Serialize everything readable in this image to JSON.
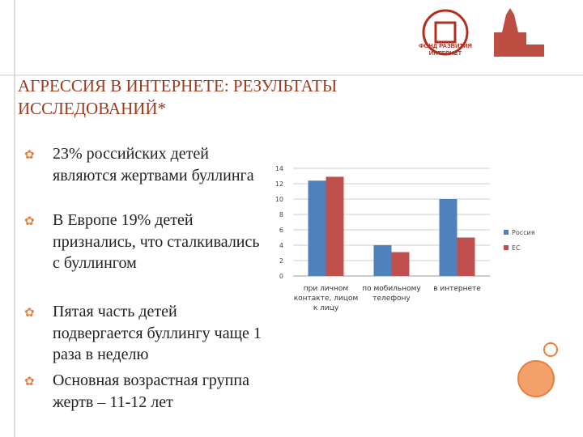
{
  "logo_text": "ФОНД РАЗВИТИЯ ИНТЕРНЕТ",
  "title": "АГРЕССИЯ В ИНТЕРНЕТЕ: РЕЗУЛЬТАТЫ ИССЛЕДОВАНИЙ*",
  "bullets": [
    "23% российских детей являются жертвами буллинга",
    "В Европе 19% детей признались, что сталкивались с буллингом",
    "Пятая часть детей подвергается буллингу чаще 1 раза в неделю",
    "Основная возрастная группа жертв – 11-12 лет"
  ],
  "chart_data": {
    "type": "bar",
    "categories": [
      "при личном контакте, лицом к лицу",
      "по мобильному телефону",
      "в интернете"
    ],
    "series": [
      {
        "name": "Россия",
        "color": "#4f81bd",
        "values": [
          12.4,
          4,
          10
        ]
      },
      {
        "name": "ЕС",
        "color": "#c0504d",
        "values": [
          12.9,
          3.1,
          5
        ]
      }
    ],
    "ylim": [
      0,
      14
    ],
    "yticks": [
      0,
      2,
      4,
      6,
      8,
      10,
      12,
      14
    ],
    "grid": true,
    "legend": "right"
  }
}
